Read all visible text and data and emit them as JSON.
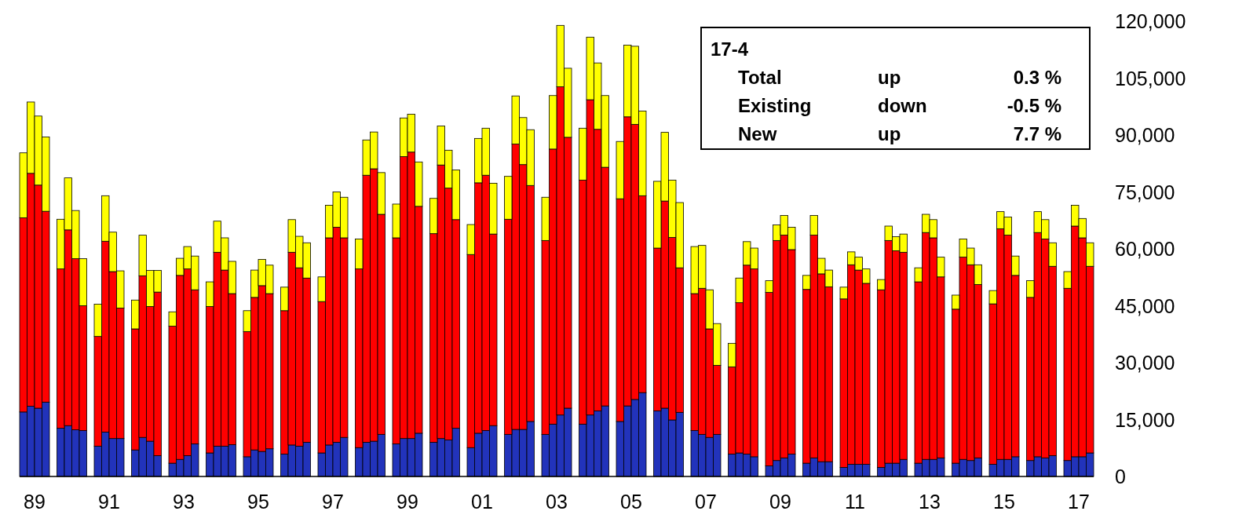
{
  "chart_data": {
    "type": "bar",
    "stacked": true,
    "categories": [
      null,
      "89",
      null,
      null,
      null,
      null,
      null,
      null,
      null,
      null,
      null,
      "91",
      null,
      null,
      null,
      null,
      null,
      null,
      null,
      null,
      null,
      "93",
      null,
      null,
      null,
      null,
      null,
      null,
      null,
      null,
      null,
      "95",
      null,
      null,
      null,
      null,
      null,
      null,
      null,
      null,
      null,
      "97",
      null,
      null,
      null,
      null,
      null,
      null,
      null,
      null,
      null,
      "99",
      null,
      null,
      null,
      null,
      null,
      null,
      null,
      null,
      null,
      "01",
      null,
      null,
      null,
      null,
      null,
      null,
      null,
      null,
      null,
      "03",
      null,
      null,
      null,
      null,
      null,
      null,
      null,
      null,
      null,
      "05",
      null,
      null,
      null,
      null,
      null,
      null,
      null,
      null,
      null,
      "07",
      null,
      null,
      null,
      null,
      null,
      null,
      null,
      null,
      null,
      "09",
      null,
      null,
      null,
      null,
      null,
      null,
      null,
      null,
      null,
      "11",
      null,
      null,
      null,
      null,
      null,
      null,
      null,
      null,
      null,
      "13",
      null,
      null,
      null,
      null,
      null,
      null,
      null,
      null,
      null,
      "15",
      null,
      null,
      null,
      null,
      null,
      null,
      null,
      null,
      null,
      "17",
      null,
      null
    ],
    "ylim": [
      0,
      120000
    ],
    "yticks": [
      0,
      {
        "value": 15000,
        "label": "15,000"
      },
      {
        "value": 30000,
        "label": "30,000"
      },
      {
        "value": 45000,
        "label": "45,000"
      },
      {
        "value": 60000,
        "label": "60,000"
      },
      {
        "value": 75000,
        "label": "75,000"
      },
      {
        "value": 90000,
        "label": "90,000"
      },
      {
        "value": 105000,
        "label": "105,000"
      },
      {
        "value": 120000,
        "label": "120,000"
      }
    ],
    "series": [
      {
        "color": "#2233bb",
        "values": [
          17000,
          18500,
          18000,
          19600,
          null,
          12700,
          13400,
          12300,
          12100,
          null,
          8000,
          11700,
          10000,
          10000,
          null,
          7000,
          10300,
          9300,
          5500,
          null,
          3500,
          4500,
          5500,
          8600,
          null,
          6200,
          8000,
          8000,
          8400,
          null,
          5200,
          7000,
          6600,
          7300,
          null,
          5900,
          8300,
          8000,
          9000,
          null,
          6200,
          8300,
          9000,
          10300,
          null,
          7600,
          9000,
          9300,
          11100,
          null,
          8600,
          10000,
          10000,
          11400,
          null,
          9000,
          10000,
          9600,
          12700,
          null,
          7600,
          11400,
          12100,
          13400,
          null,
          11100,
          12400,
          12400,
          14500,
          null,
          11100,
          13800,
          16200,
          18000,
          null,
          13800,
          16200,
          17300,
          18600,
          null,
          14500,
          18600,
          20300,
          22100,
          null,
          17300,
          18000,
          14900,
          16900,
          null,
          12100,
          11100,
          10300,
          11100,
          null,
          5900,
          6200,
          5900,
          5200,
          null,
          2800,
          4200,
          4900,
          5900,
          null,
          3500,
          4900,
          3900,
          3900,
          null,
          2400,
          3200,
          3200,
          3200,
          null,
          2400,
          3500,
          3500,
          4500,
          null,
          3500,
          4500,
          4500,
          4900,
          null,
          3500,
          4500,
          4200,
          4900,
          null,
          3200,
          4500,
          4500,
          5200,
          null,
          4200,
          5200,
          4900,
          5500,
          null,
          4200,
          5200,
          5200,
          6200
        ]
      },
      {
        "color": "#ff0000",
        "values": [
          51200,
          61400,
          58800,
          50300,
          null,
          42000,
          51600,
          45100,
          32900,
          null,
          28900,
          50300,
          44000,
          34400,
          null,
          31900,
          42600,
          35500,
          43100,
          null,
          36100,
          48500,
          49200,
          40600,
          null,
          38600,
          51100,
          46400,
          39800,
          null,
          33000,
          40200,
          43700,
          40900,
          null,
          37800,
          50800,
          47000,
          43300,
          null,
          39900,
          54600,
          56700,
          52600,
          null,
          47100,
          70400,
          71800,
          58000,
          null,
          54300,
          74300,
          75500,
          59800,
          null,
          55000,
          72100,
          66400,
          55000,
          null,
          50900,
          66000,
          67300,
          50500,
          null,
          56700,
          75200,
          69800,
          62200,
          null,
          51100,
          72500,
          86500,
          71400,
          null,
          64300,
          83100,
          74200,
          62900,
          null,
          58700,
          76200,
          72500,
          51900,
          null,
          42900,
          54600,
          48100,
          38100,
          null,
          36100,
          38500,
          28600,
          18200,
          null,
          23000,
          39600,
          49800,
          49500,
          null,
          45700,
          58000,
          58700,
          53900,
          null,
          45800,
          58700,
          49500,
          46100,
          null,
          44400,
          52600,
          51200,
          47700,
          null,
          46800,
          58700,
          56000,
          54600,
          null,
          47800,
          59800,
          58400,
          47700,
          null,
          40600,
          53300,
          51600,
          45700,
          null,
          42300,
          60800,
          59100,
          47800,
          null,
          43000,
          59100,
          57700,
          49900,
          null,
          45400,
          60800,
          57700,
          49200
        ]
      },
      {
        "color": "#ffff00",
        "values": [
          17100,
          18800,
          18200,
          19600,
          null,
          13100,
          13700,
          12700,
          12400,
          null,
          8500,
          12000,
          10400,
          9800,
          null,
          7600,
          10700,
          9500,
          5700,
          null,
          3800,
          4500,
          5900,
          8900,
          null,
          6500,
          8200,
          8500,
          8500,
          null,
          5500,
          7200,
          6900,
          7500,
          null,
          6200,
          8600,
          8300,
          9300,
          null,
          6500,
          8600,
          9300,
          10700,
          null,
          7900,
          9300,
          9700,
          11000,
          null,
          8900,
          10200,
          10000,
          11700,
          null,
          9300,
          10300,
          10000,
          13100,
          null,
          7900,
          11700,
          12400,
          13400,
          null,
          11300,
          12700,
          12400,
          14700,
          null,
          11400,
          14100,
          16200,
          18200,
          null,
          13700,
          16500,
          17500,
          18900,
          null,
          15100,
          18900,
          20600,
          22300,
          null,
          17600,
          18100,
          15100,
          17200,
          null,
          12400,
          11300,
          10300,
          11000,
          null,
          6200,
          6500,
          6200,
          5500,
          null,
          3100,
          4100,
          5200,
          5900,
          null,
          3700,
          5200,
          4100,
          4400,
          null,
          3100,
          3400,
          3400,
          3800,
          null,
          2700,
          3800,
          3700,
          4800,
          null,
          3700,
          4800,
          4800,
          5200,
          null,
          3700,
          4800,
          4400,
          5200,
          null,
          3500,
          4500,
          4800,
          5100,
          null,
          4400,
          5500,
          5100,
          6200,
          null,
          4400,
          5500,
          5100,
          6200
        ]
      }
    ],
    "annotations": [
      "17-4",
      "Total",
      "up",
      "0.3 %",
      "Existing",
      "down",
      "-0.5 %",
      "New",
      "up",
      "7.7 %"
    ]
  }
}
